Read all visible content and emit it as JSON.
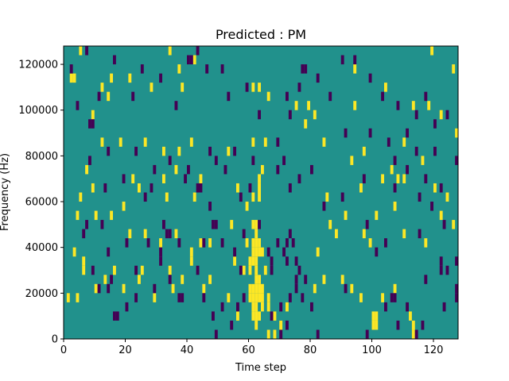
{
  "chart_data": {
    "type": "heatmap",
    "title": "Predicted : PM",
    "xlabel": "Time step",
    "ylabel": "Frequency (Hz)",
    "xlim": [
      0,
      128
    ],
    "ylim": [
      0,
      128000
    ],
    "x_ticks": [
      0,
      20,
      40,
      60,
      80,
      100,
      120
    ],
    "x_tick_labels": [
      "0",
      "20",
      "40",
      "60",
      "80",
      "100",
      "120"
    ],
    "y_ticks": [
      0,
      20000,
      40000,
      60000,
      80000,
      100000,
      120000
    ],
    "y_tick_labels": [
      "0",
      "20000",
      "40000",
      "60000",
      "80000",
      "100000",
      "120000"
    ],
    "grid": false,
    "colormap": "viridis",
    "background_value": 0,
    "colors": {
      "background": "#21918c",
      "high": "#fde725",
      "low": "#440154"
    },
    "cell_size": {
      "time_steps": 1,
      "frequency_hz": 4000
    },
    "cells_high": [
      [
        5,
        124000
      ],
      [
        2,
        112000
      ],
      [
        3,
        112000
      ],
      [
        15,
        112000
      ],
      [
        21,
        112000
      ],
      [
        28,
        108000
      ],
      [
        14,
        104000
      ],
      [
        12,
        108000
      ],
      [
        9,
        96000
      ],
      [
        34,
        124000
      ],
      [
        42,
        120000
      ],
      [
        37,
        116000
      ],
      [
        38,
        108000
      ],
      [
        61,
        108000
      ],
      [
        63,
        108000
      ],
      [
        66,
        104000
      ],
      [
        75,
        100000
      ],
      [
        79,
        100000
      ],
      [
        81,
        96000
      ],
      [
        78,
        92000
      ],
      [
        84,
        84000
      ],
      [
        94,
        100000
      ],
      [
        118,
        100000
      ],
      [
        122,
        96000
      ],
      [
        127,
        88000
      ],
      [
        7,
        72000
      ],
      [
        12,
        84000
      ],
      [
        18,
        84000
      ],
      [
        26,
        84000
      ],
      [
        32,
        80000
      ],
      [
        37,
        80000
      ],
      [
        41,
        84000
      ],
      [
        53,
        80000
      ],
      [
        61,
        84000
      ],
      [
        65,
        84000
      ],
      [
        22,
        68000
      ],
      [
        32,
        68000
      ],
      [
        36,
        72000
      ],
      [
        44,
        68000
      ],
      [
        56,
        64000
      ],
      [
        64,
        72000
      ],
      [
        63,
        68000
      ],
      [
        63,
        64000
      ],
      [
        63,
        60000
      ],
      [
        5,
        60000
      ],
      [
        9,
        64000
      ],
      [
        24,
        64000
      ],
      [
        33,
        60000
      ],
      [
        42,
        60000
      ],
      [
        59,
        56000
      ],
      [
        61,
        60000
      ],
      [
        19,
        56000
      ],
      [
        4,
        52000
      ],
      [
        10,
        52000
      ],
      [
        15,
        52000
      ],
      [
        21,
        44000
      ],
      [
        26,
        44000
      ],
      [
        31,
        40000
      ],
      [
        36,
        44000
      ],
      [
        44,
        40000
      ],
      [
        47,
        40000
      ],
      [
        54,
        48000
      ],
      [
        59,
        40000
      ],
      [
        61,
        48000
      ],
      [
        62,
        48000
      ],
      [
        62,
        44000
      ],
      [
        61,
        40000
      ],
      [
        62,
        40000
      ],
      [
        63,
        40000
      ],
      [
        61,
        36000
      ],
      [
        62,
        36000
      ],
      [
        63,
        36000
      ],
      [
        64,
        36000
      ],
      [
        60,
        32000
      ],
      [
        61,
        32000
      ],
      [
        62,
        32000
      ],
      [
        55,
        32000
      ],
      [
        65,
        28000
      ],
      [
        62,
        24000
      ],
      [
        63,
        24000
      ],
      [
        3,
        36000
      ],
      [
        6,
        32000
      ],
      [
        6,
        28000
      ],
      [
        13,
        24000
      ],
      [
        16,
        28000
      ],
      [
        25,
        28000
      ],
      [
        34,
        28000
      ],
      [
        41,
        32000
      ],
      [
        41,
        36000
      ],
      [
        58,
        28000
      ],
      [
        60,
        28000
      ],
      [
        62,
        28000
      ],
      [
        60,
        20000
      ],
      [
        61,
        20000
      ],
      [
        62,
        20000
      ],
      [
        63,
        20000
      ],
      [
        64,
        20000
      ],
      [
        60,
        16000
      ],
      [
        61,
        16000
      ],
      [
        62,
        16000
      ],
      [
        63,
        16000
      ],
      [
        64,
        16000
      ],
      [
        66,
        16000
      ],
      [
        61,
        12000
      ],
      [
        62,
        12000
      ],
      [
        64,
        12000
      ],
      [
        66,
        12000
      ],
      [
        61,
        8000
      ],
      [
        62,
        8000
      ],
      [
        63,
        8000
      ],
      [
        68,
        8000
      ],
      [
        62,
        4000
      ],
      [
        70,
        4000
      ],
      [
        72,
        12000
      ],
      [
        1,
        16000
      ],
      [
        4,
        16000
      ],
      [
        10,
        20000
      ],
      [
        19,
        20000
      ],
      [
        24,
        24000
      ],
      [
        29,
        16000
      ],
      [
        35,
        20000
      ],
      [
        38,
        24000
      ],
      [
        45,
        20000
      ],
      [
        47,
        24000
      ],
      [
        53,
        16000
      ],
      [
        56,
        8000
      ],
      [
        66,
        0
      ],
      [
        68,
        0
      ],
      [
        81,
        20000
      ],
      [
        84,
        24000
      ],
      [
        90,
        24000
      ],
      [
        93,
        20000
      ],
      [
        96,
        16000
      ],
      [
        100,
        8000
      ],
      [
        101,
        8000
      ],
      [
        100,
        4000
      ],
      [
        101,
        4000
      ],
      [
        103,
        16000
      ],
      [
        107,
        20000
      ],
      [
        112,
        8000
      ],
      [
        113,
        4000
      ],
      [
        113,
        0
      ],
      [
        88,
        44000
      ],
      [
        91,
        52000
      ],
      [
        97,
        44000
      ],
      [
        99,
        40000
      ],
      [
        101,
        52000
      ],
      [
        107,
        56000
      ],
      [
        110,
        44000
      ],
      [
        117,
        40000
      ],
      [
        122,
        52000
      ],
      [
        126,
        48000
      ],
      [
        82,
        36000
      ],
      [
        86,
        48000
      ],
      [
        85,
        60000
      ],
      [
        96,
        64000
      ],
      [
        103,
        68000
      ],
      [
        108,
        68000
      ],
      [
        110,
        68000
      ],
      [
        106,
        72000
      ],
      [
        93,
        76000
      ],
      [
        97,
        80000
      ],
      [
        110,
        84000
      ],
      [
        116,
        76000
      ],
      [
        120,
        64000
      ],
      [
        124,
        60000
      ],
      [
        94,
        116000
      ],
      [
        104,
        108000
      ],
      [
        113,
        100000
      ],
      [
        119,
        124000
      ],
      [
        126,
        116000
      ]
    ],
    "cells_low": [
      [
        2,
        116000
      ],
      [
        7,
        124000
      ],
      [
        11,
        104000
      ],
      [
        16,
        120000
      ],
      [
        22,
        104000
      ],
      [
        25,
        116000
      ],
      [
        31,
        112000
      ],
      [
        36,
        100000
      ],
      [
        40,
        120000
      ],
      [
        41,
        120000
      ],
      [
        43,
        124000
      ],
      [
        46,
        116000
      ],
      [
        51,
        116000
      ],
      [
        53,
        104000
      ],
      [
        59,
        108000
      ],
      [
        63,
        96000
      ],
      [
        72,
        104000
      ],
      [
        73,
        96000
      ],
      [
        77,
        116000
      ],
      [
        78,
        116000
      ],
      [
        76,
        108000
      ],
      [
        82,
        112000
      ],
      [
        86,
        104000
      ],
      [
        90,
        120000
      ],
      [
        94,
        120000
      ],
      [
        99,
        112000
      ],
      [
        103,
        104000
      ],
      [
        108,
        100000
      ],
      [
        114,
        96000
      ],
      [
        117,
        104000
      ],
      [
        120,
        92000
      ],
      [
        124,
        96000
      ],
      [
        8,
        92000
      ],
      [
        9,
        92000
      ],
      [
        4,
        100000
      ],
      [
        8,
        76000
      ],
      [
        14,
        80000
      ],
      [
        23,
        80000
      ],
      [
        29,
        72000
      ],
      [
        34,
        76000
      ],
      [
        40,
        72000
      ],
      [
        47,
        80000
      ],
      [
        49,
        76000
      ],
      [
        52,
        72000
      ],
      [
        55,
        80000
      ],
      [
        61,
        76000
      ],
      [
        69,
        84000
      ],
      [
        71,
        76000
      ],
      [
        73,
        64000
      ],
      [
        80,
        72000
      ],
      [
        91,
        88000
      ],
      [
        99,
        88000
      ],
      [
        105,
        84000
      ],
      [
        107,
        76000
      ],
      [
        111,
        88000
      ],
      [
        114,
        80000
      ],
      [
        120,
        80000
      ],
      [
        127,
        76000
      ],
      [
        13,
        64000
      ],
      [
        19,
        68000
      ],
      [
        26,
        60000
      ],
      [
        28,
        64000
      ],
      [
        39,
        68000
      ],
      [
        43,
        64000
      ],
      [
        44,
        64000
      ],
      [
        47,
        56000
      ],
      [
        57,
        60000
      ],
      [
        60,
        64000
      ],
      [
        69,
        72000
      ],
      [
        76,
        68000
      ],
      [
        84,
        56000
      ],
      [
        90,
        60000
      ],
      [
        97,
        68000
      ],
      [
        107,
        64000
      ],
      [
        111,
        72000
      ],
      [
        117,
        68000
      ],
      [
        122,
        64000
      ],
      [
        119,
        56000
      ],
      [
        12,
        48000
      ],
      [
        14,
        36000
      ],
      [
        20,
        40000
      ],
      [
        27,
        40000
      ],
      [
        31,
        36000
      ],
      [
        32,
        48000
      ],
      [
        33,
        44000
      ],
      [
        34,
        44000
      ],
      [
        37,
        40000
      ],
      [
        45,
        40000
      ],
      [
        48,
        48000
      ],
      [
        49,
        48000
      ],
      [
        43,
        28000
      ],
      [
        51,
        40000
      ],
      [
        55,
        36000
      ],
      [
        57,
        28000
      ],
      [
        58,
        44000
      ],
      [
        63,
        48000
      ],
      [
        66,
        36000
      ],
      [
        67,
        32000
      ],
      [
        67,
        28000
      ],
      [
        69,
        40000
      ],
      [
        71,
        36000
      ],
      [
        72,
        40000
      ],
      [
        72,
        32000
      ],
      [
        73,
        44000
      ],
      [
        74,
        40000
      ],
      [
        75,
        32000
      ],
      [
        75,
        24000
      ],
      [
        76,
        28000
      ],
      [
        78,
        24000
      ],
      [
        9,
        28000
      ],
      [
        11,
        20000
      ],
      [
        14,
        20000
      ],
      [
        15,
        24000
      ],
      [
        23,
        16000
      ],
      [
        29,
        20000
      ],
      [
        31,
        32000
      ],
      [
        34,
        24000
      ],
      [
        37,
        16000
      ],
      [
        38,
        16000
      ],
      [
        45,
        16000
      ],
      [
        48,
        8000
      ],
      [
        49,
        0
      ],
      [
        51,
        12000
      ],
      [
        54,
        4000
      ],
      [
        56,
        12000
      ],
      [
        58,
        16000
      ],
      [
        67,
        8000
      ],
      [
        70,
        12000
      ],
      [
        70,
        0
      ],
      [
        72,
        4000
      ],
      [
        73,
        16000
      ],
      [
        75,
        20000
      ],
      [
        77,
        16000
      ],
      [
        80,
        12000
      ],
      [
        82,
        0
      ],
      [
        91,
        20000
      ],
      [
        98,
        0
      ],
      [
        104,
        12000
      ],
      [
        106,
        16000
      ],
      [
        107,
        16000
      ],
      [
        108,
        4000
      ],
      [
        111,
        12000
      ],
      [
        114,
        0
      ],
      [
        116,
        4000
      ],
      [
        117,
        24000
      ],
      [
        123,
        12000
      ],
      [
        124,
        28000
      ],
      [
        127,
        20000
      ],
      [
        127,
        16000
      ],
      [
        16,
        8000
      ],
      [
        20,
        12000
      ],
      [
        23,
        28000
      ],
      [
        6,
        44000
      ],
      [
        7,
        48000
      ],
      [
        17,
        8000
      ],
      [
        127,
        32000
      ],
      [
        122,
        32000
      ],
      [
        122,
        28000
      ],
      [
        101,
        36000
      ],
      [
        104,
        40000
      ],
      [
        98,
        48000
      ],
      [
        115,
        44000
      ],
      [
        123,
        48000
      ],
      [
        115,
        60000
      ]
    ]
  }
}
